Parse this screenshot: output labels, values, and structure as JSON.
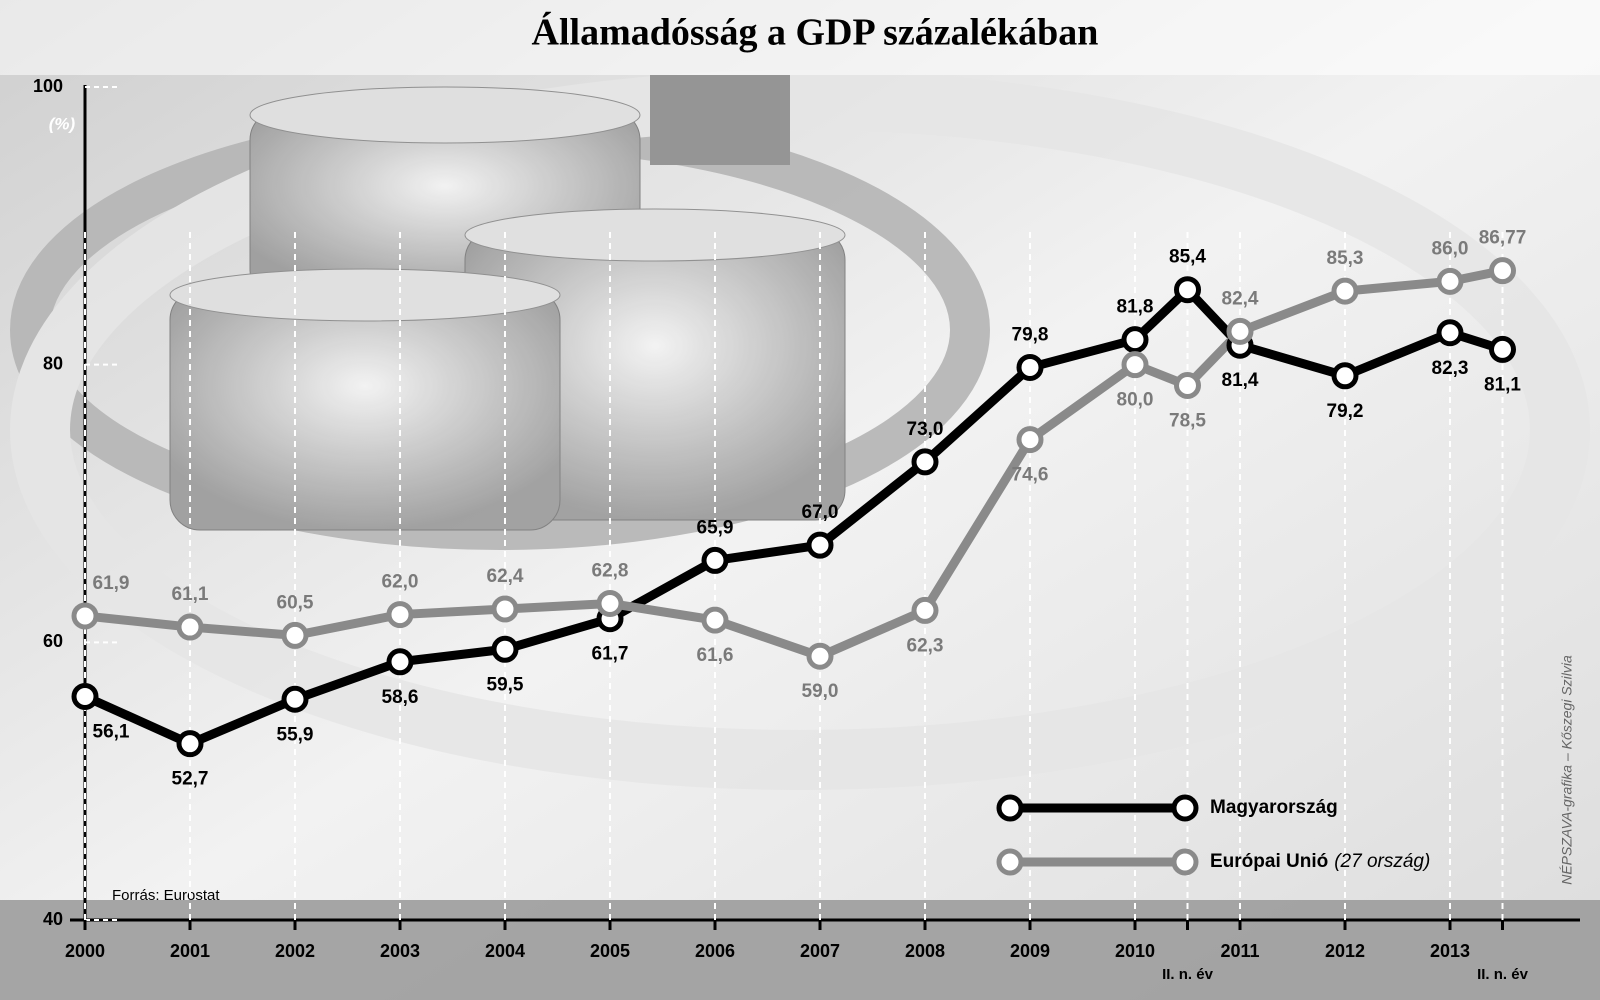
{
  "chart_data": {
    "type": "line",
    "title": "Államadósság a GDP százalékában",
    "y_unit": "(%)",
    "source": "Forrás: Eurostat",
    "credit": "NÉPSZAVA-grafika – Kőszegi Szilvia",
    "x": [
      2000,
      2001,
      2002,
      2003,
      2004,
      2005,
      2006,
      2007,
      2008,
      2009,
      2010,
      2010.5,
      2011,
      2012,
      2013,
      2013.5
    ],
    "xlim": [
      2000,
      2014
    ],
    "xticks": [
      2000,
      2001,
      2002,
      2003,
      2004,
      2005,
      2006,
      2007,
      2008,
      2009,
      2010,
      {
        "value": 2010.5,
        "label": "II. n. év"
      },
      2011,
      2012,
      2013,
      {
        "value": 2013.5,
        "label": "II. n. év"
      }
    ],
    "ylim": [
      40,
      100
    ],
    "yticks": [
      40,
      60,
      80,
      100
    ],
    "grid": true,
    "series": [
      {
        "name": "Magyarország",
        "color": "#000000",
        "values": [
          56.1,
          52.7,
          55.9,
          58.6,
          59.5,
          61.7,
          65.9,
          67.0,
          73.0,
          79.8,
          81.8,
          85.4,
          81.4,
          79.2,
          82.3,
          81.1
        ],
        "value_labels": [
          "56,1",
          "52,7",
          "55,9",
          "58,6",
          "59,5",
          "61,7",
          "65,9",
          "67,0",
          "73,0",
          "79,8",
          "81,8",
          "85,4",
          "81,4",
          "79,2",
          "82,3",
          "81,1"
        ]
      },
      {
        "name": "Európai Unió",
        "legend_note": "(27 ország)",
        "color": "#8a8a8a",
        "values": [
          61.9,
          61.1,
          60.5,
          62.0,
          62.4,
          62.8,
          61.6,
          59.0,
          62.3,
          74.6,
          80.0,
          78.5,
          82.4,
          85.3,
          86.0,
          86.77
        ],
        "value_labels": [
          "61,9",
          "61,1",
          "60,5",
          "62,0",
          "62,4",
          "62,8",
          "61,6",
          "59,0",
          "62,3",
          "74,6",
          "80,0",
          "78,5",
          "82,4",
          "85,3",
          "86,0",
          "86,77"
        ]
      }
    ]
  }
}
